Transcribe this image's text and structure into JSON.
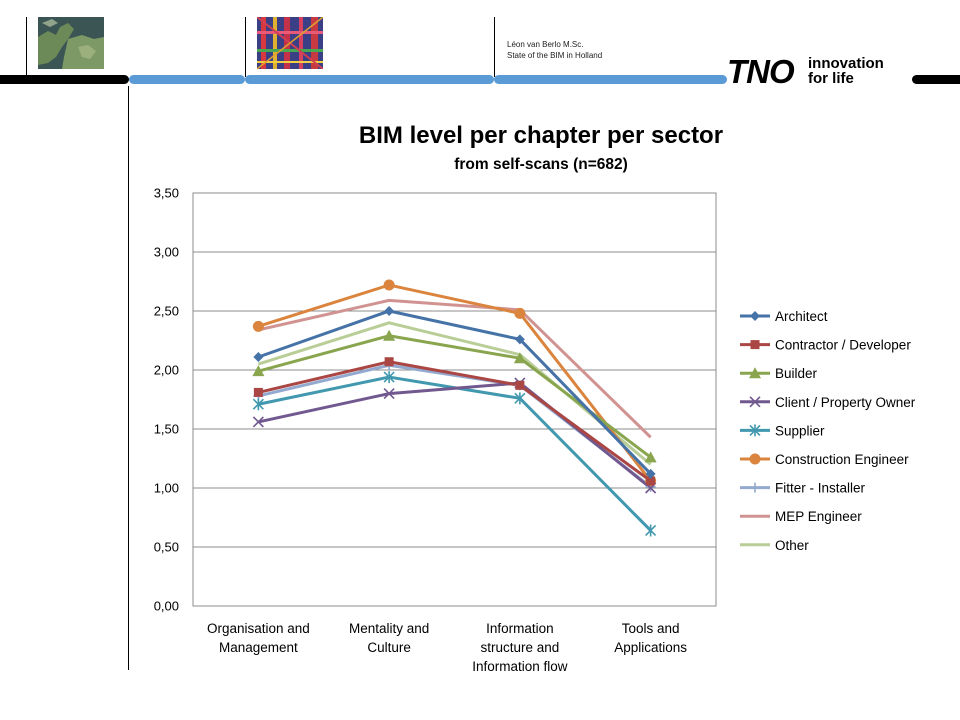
{
  "header": {
    "author_line": "Léon van Berlo M.Sc.",
    "subtitle_line": "State of the BIM in Holland",
    "logo_word": "TNO",
    "tagline_line1": "innovation",
    "tagline_line2": "for life",
    "accent_color": "#5b9bd5"
  },
  "chart_data": {
    "type": "line",
    "title": "BIM level per chapter per sector",
    "subtitle": "from self-scans (n=682)",
    "categories": [
      [
        "Organisation and",
        "Management"
      ],
      [
        "Mentality and",
        "Culture"
      ],
      [
        "Information",
        "structure and",
        "Information flow"
      ],
      [
        "Tools and",
        "Applications"
      ]
    ],
    "ylim": [
      0,
      3.5
    ],
    "ytick_step": 0.5,
    "ytick_labels": [
      "0,00",
      "0,50",
      "1,00",
      "1,50",
      "2,00",
      "2,50",
      "3,00",
      "3,50"
    ],
    "grid": true,
    "legend_position": "right",
    "series": [
      {
        "name": "Architect",
        "color": "#4572A7",
        "marker": "diamond",
        "values": [
          2.11,
          2.5,
          2.26,
          1.12
        ]
      },
      {
        "name": "Contractor / Developer",
        "color": "#AA4643",
        "marker": "square",
        "values": [
          1.81,
          2.07,
          1.87,
          1.06
        ]
      },
      {
        "name": "Builder",
        "color": "#89A54E",
        "marker": "triangle",
        "values": [
          1.99,
          2.29,
          2.1,
          1.26
        ]
      },
      {
        "name": "Client / Property Owner",
        "color": "#71588F",
        "marker": "x",
        "values": [
          1.56,
          1.8,
          1.89,
          1.0
        ]
      },
      {
        "name": "Supplier",
        "color": "#4198AF",
        "marker": "star",
        "values": [
          1.71,
          1.94,
          1.76,
          0.64
        ]
      },
      {
        "name": "Construction Engineer",
        "color": "#DB843D",
        "marker": "circle",
        "values": [
          2.37,
          2.72,
          2.48,
          1.06
        ]
      },
      {
        "name": "Fitter - Installer",
        "color": "#93A9CF",
        "marker": "plus",
        "values": [
          1.78,
          2.04,
          1.87,
          1.01
        ]
      },
      {
        "name": "MEP Engineer",
        "color": "#D19392",
        "marker": "none",
        "values": [
          2.34,
          2.59,
          2.51,
          1.43
        ]
      },
      {
        "name": "Other",
        "color": "#B9CD96",
        "marker": "none",
        "values": [
          2.05,
          2.4,
          2.13,
          1.2
        ]
      }
    ]
  }
}
